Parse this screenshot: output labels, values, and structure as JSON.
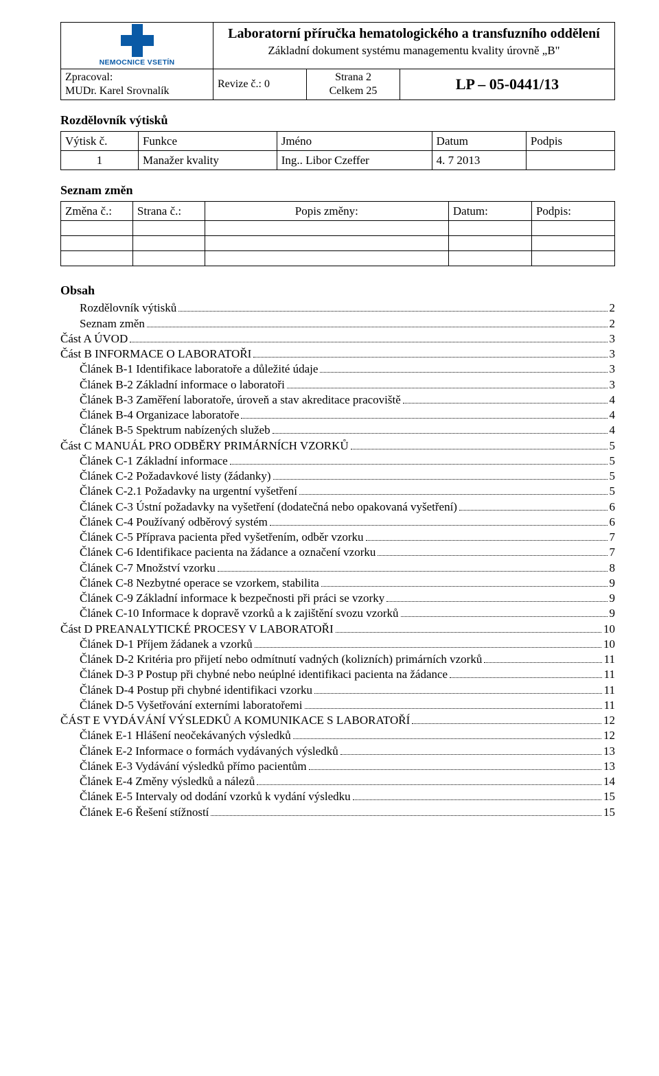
{
  "header": {
    "logo_text": "NEMOCNICE VSETÍN",
    "title_main": "Laboratorní příručka hematologického a transfuzního oddělení",
    "title_sub": "Základní dokument systému managementu kvality úrovně „B\"",
    "author_label": "Zpracoval:",
    "author_name": "MUDr. Karel Srovnalík",
    "revision": "Revize č.: 0",
    "page_current": "Strana 2",
    "page_total": "Celkem 25",
    "doc_code": "LP – 05-0441/13"
  },
  "dist": {
    "title": "Rozdělovník výtisků",
    "cols": [
      "Výtisk č.",
      "Funkce",
      "Jméno",
      "Datum",
      "Podpis"
    ],
    "rows": [
      [
        "1",
        "Manažer kvality",
        "Ing.. Libor Czeffer",
        "4. 7 2013",
        ""
      ]
    ]
  },
  "changes": {
    "title": "Seznam změn",
    "cols": [
      "Změna č.:",
      "Strana č.:",
      "Popis změny:",
      "Datum:",
      "Podpis:"
    ],
    "empty_rows": 3
  },
  "obsah_title": "Obsah",
  "toc": [
    {
      "indent": 1,
      "label": "Rozdělovník výtisků",
      "page": "2"
    },
    {
      "indent": 1,
      "label": "Seznam změn",
      "page": "2"
    },
    {
      "indent": 0,
      "label": "Část A ÚVOD",
      "page": "3"
    },
    {
      "indent": 0,
      "label": "Část B INFORMACE O LABORATOŘI",
      "page": "3"
    },
    {
      "indent": 1,
      "label": "Článek B-1 Identifikace laboratoře a důležité údaje",
      "page": "3"
    },
    {
      "indent": 1,
      "label": "Článek B-2 Základní informace o laboratoři",
      "page": "3"
    },
    {
      "indent": 1,
      "label": "Článek B-3 Zaměření laboratoře, úroveň a stav akreditace pracoviště",
      "page": "4"
    },
    {
      "indent": 1,
      "label": "Článek B-4 Organizace laboratoře",
      "page": "4"
    },
    {
      "indent": 1,
      "label": "Článek B-5 Spektrum nabízených služeb",
      "page": "4"
    },
    {
      "indent": 0,
      "label": "Část C MANUÁL PRO ODBĚRY PRIMÁRNÍCH VZORKŮ",
      "page": "5"
    },
    {
      "indent": 1,
      "label": "Článek C-1 Základní informace",
      "page": "5"
    },
    {
      "indent": 1,
      "label": "Článek C-2 Požadavkové listy (žádanky)",
      "page": "5"
    },
    {
      "indent": 1,
      "label": "Článek C-2.1 Požadavky na urgentní vyšetření",
      "page": "5"
    },
    {
      "indent": 1,
      "label": "Článek C-3 Ústní požadavky na vyšetření (dodatečná nebo opakovaná vyšetření)",
      "page": "6"
    },
    {
      "indent": 1,
      "label": "Článek C-4 Používaný odběrový systém",
      "page": "6"
    },
    {
      "indent": 1,
      "label": "Článek C-5 Příprava pacienta před vyšetřením, odběr vzorku",
      "page": "7"
    },
    {
      "indent": 1,
      "label": "Článek C-6 Identifikace pacienta na žádance a označení vzorku",
      "page": "7"
    },
    {
      "indent": 1,
      "label": "Článek C-7 Množství vzorku",
      "page": "8"
    },
    {
      "indent": 1,
      "label": "Článek C-8 Nezbytné operace se vzorkem, stabilita",
      "page": "9"
    },
    {
      "indent": 1,
      "label": "Článek C-9 Základní informace k bezpečnosti při práci se vzorky",
      "page": "9"
    },
    {
      "indent": 1,
      "label": "Článek C-10 Informace k dopravě vzorků a k zajištění svozu vzorků",
      "page": "9"
    },
    {
      "indent": 0,
      "label": "Část D PREANALYTICKÉ PROCESY V LABORATOŘI",
      "page": "10"
    },
    {
      "indent": 1,
      "label": "Článek D-1 Příjem žádanek a vzorků",
      "page": "10"
    },
    {
      "indent": 1,
      "label": "Článek D-2 Kritéria pro přijetí nebo odmítnutí vadných (kolizních) primárních vzorků",
      "page": "11"
    },
    {
      "indent": 1,
      "label": "Článek D-3 P Postup při chybné nebo neúplné identifikaci pacienta na žádance",
      "page": "11"
    },
    {
      "indent": 1,
      "label": "Článek D-4 Postup při chybné identifikaci vzorku",
      "page": "11"
    },
    {
      "indent": 1,
      "label": "Článek D-5 Vyšetřování externími laboratořemi",
      "page": "11"
    },
    {
      "indent": 0,
      "label": "ČÁST E VYDÁVÁNÍ VÝSLEDKŮ A KOMUNIKACE S LABORATOŘÍ",
      "page": "12"
    },
    {
      "indent": 1,
      "label": "Článek E-1 Hlášení neočekávaných výsledků",
      "page": "12"
    },
    {
      "indent": 1,
      "label": "Článek E-2 Informace o formách vydávaných výsledků",
      "page": "13"
    },
    {
      "indent": 1,
      "label": "Článek E-3 Vydávání výsledků přímo pacientům",
      "page": "13"
    },
    {
      "indent": 1,
      "label": "Článek E-4 Změny výsledků a nálezů",
      "page": "14"
    },
    {
      "indent": 1,
      "label": "Článek E-5 Intervaly od dodání vzorků k vydání výsledku",
      "page": "15"
    },
    {
      "indent": 1,
      "label": "Článek E-6 Řešení stížností",
      "page": "15"
    }
  ]
}
